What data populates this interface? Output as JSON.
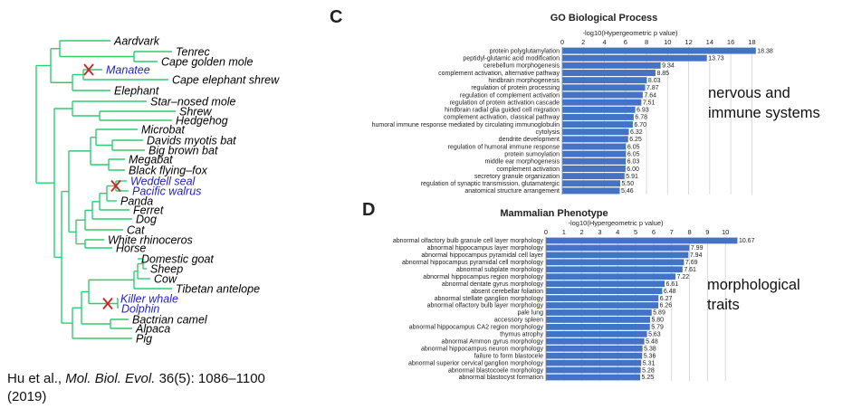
{
  "tree": {
    "line_color": "#2ecc71",
    "highlight_color": "#1f1fcc",
    "marker_color": "#cc2222",
    "taxa": [
      {
        "label": "Aardvark",
        "highlight": false,
        "lost": false
      },
      {
        "label": "Tenrec",
        "highlight": false,
        "lost": false
      },
      {
        "label": "Cape golden mole",
        "highlight": false,
        "lost": false
      },
      {
        "label": "Manatee",
        "highlight": true,
        "lost": true
      },
      {
        "label": "Cape elephant shrew",
        "highlight": false,
        "lost": false
      },
      {
        "label": "Elephant",
        "highlight": false,
        "lost": false
      },
      {
        "label": "Star–nosed mole",
        "highlight": false,
        "lost": false
      },
      {
        "label": "Shrew",
        "highlight": false,
        "lost": false
      },
      {
        "label": "Hedgehog",
        "highlight": false,
        "lost": false
      },
      {
        "label": "Microbat",
        "highlight": false,
        "lost": false
      },
      {
        "label": "Davids myotis bat",
        "highlight": false,
        "lost": false
      },
      {
        "label": "Big brown bat",
        "highlight": false,
        "lost": false
      },
      {
        "label": "Megabat",
        "highlight": false,
        "lost": false
      },
      {
        "label": "Black flying–fox",
        "highlight": false,
        "lost": false
      },
      {
        "label": "Weddell seal",
        "highlight": true,
        "lost": false
      },
      {
        "label": "Pacific walrus",
        "highlight": true,
        "lost": false
      },
      {
        "label": "Panda",
        "highlight": false,
        "lost": false
      },
      {
        "label": "Ferret",
        "highlight": false,
        "lost": false
      },
      {
        "label": "Dog",
        "highlight": false,
        "lost": false
      },
      {
        "label": "Cat",
        "highlight": false,
        "lost": false
      },
      {
        "label": "White rhinoceros",
        "highlight": false,
        "lost": false
      },
      {
        "label": "Horse",
        "highlight": false,
        "lost": false
      },
      {
        "label": "Domestic goat",
        "highlight": false,
        "lost": false
      },
      {
        "label": "Sheep",
        "highlight": false,
        "lost": false
      },
      {
        "label": "Cow",
        "highlight": false,
        "lost": false
      },
      {
        "label": "Tibetan antelope",
        "highlight": false,
        "lost": false
      },
      {
        "label": "Killer whale",
        "highlight": true,
        "lost": false
      },
      {
        "label": "Dolphin",
        "highlight": true,
        "lost": false
      },
      {
        "label": "Bactrian camel",
        "highlight": false,
        "lost": false
      },
      {
        "label": "Alpaca",
        "highlight": false,
        "lost": false
      },
      {
        "label": "Pig",
        "highlight": false,
        "lost": false
      }
    ]
  },
  "citation": {
    "prefix": "Hu et al., ",
    "journal": "Mol. Biol. Evol.",
    "details": " 36(5): 1086–1100",
    "year": "(2019)"
  },
  "panels": {
    "c_letter": "C",
    "d_letter": "D",
    "c_note_line1": "nervous and",
    "c_note_line2": "immune systems",
    "d_note_line1": "morphological",
    "d_note_line2": "traits"
  },
  "chart_data": [
    {
      "type": "bar",
      "orientation": "horizontal",
      "title": "GO Biological Process",
      "xlabel": "-log10(Hypergeometric p value)",
      "xlim": [
        0,
        19
      ],
      "xticks": [
        0,
        2,
        4,
        6,
        8,
        10,
        12,
        14,
        16,
        18
      ],
      "bar_color": "#4472c4",
      "grid": true,
      "categories": [
        "protein polyglutamylation",
        "peptidyl-glutamic acid modification",
        "cerebellum morphogenesis",
        "complement activation, alternative pathway",
        "hindbrain morphogenesis",
        "regulation of protein processing",
        "regulation of complement activation",
        "regulation of protein activation cascade",
        "hindbrain radial glia guided cell migration",
        "complement activation, classical pathway",
        "humoral immune response mediated by circulating immunoglobulin",
        "cytolysis",
        "dendrite development",
        "regulation of humoral immune response",
        "protein sumoylation",
        "middle ear morphogenesis",
        "complement activation",
        "secretory granule organization",
        "regulation of synaptic transmission, glutamatergic",
        "anatomical structure arrangement"
      ],
      "values": [
        18.38,
        13.73,
        9.34,
        8.85,
        8.03,
        7.87,
        7.64,
        7.51,
        6.93,
        6.78,
        6.7,
        6.32,
        6.25,
        6.05,
        6.05,
        6.03,
        6.0,
        5.91,
        5.5,
        5.46
      ],
      "value_labels": [
        "18.38",
        "13.73",
        "9.34",
        "8.85",
        "8.03",
        "7.87",
        "7.64",
        "7.51",
        "6.93",
        "6.78",
        "6.70",
        "6.32",
        "6.25",
        "6.05",
        "6.05",
        "6.03",
        "6.00",
        "5.91",
        "5.50",
        "5.46"
      ]
    },
    {
      "type": "bar",
      "orientation": "horizontal",
      "title": "Mammalian Phenotype",
      "xlabel": "-log10(Hypergeometric p value)",
      "xlim": [
        0,
        11
      ],
      "xticks": [
        0,
        1,
        2,
        3,
        4,
        5,
        6,
        7,
        8,
        9,
        10
      ],
      "bar_color": "#4472c4",
      "grid": true,
      "categories": [
        "abnormal olfactory bulb granule cell layer morphology",
        "abnormal hippocampus layer morphology",
        "abnormal hippocampus pyramidal cell layer",
        "abnormal hippocampus pyramidal cell morphology",
        "abnormal subplate morphology",
        "abnormal hippocampus region morphology",
        "abnormal dentate gyrus morphology",
        "absent cerebellar foliation",
        "abnormal stellate ganglion morphology",
        "abnormal olfactory bulb layer morphology",
        "pale lung",
        "accessory spleen",
        "abnormal hippocampus CA2 region morphology",
        "thymus atrophy",
        "abnormal Ammon gyrus morphology",
        "abnormal hippocampus neuron morphology",
        "failure to form blastocele",
        "abnormal superior cervical ganglion morphology",
        "abnormal blastocoele morphology",
        "abnormal blastocyst formation"
      ],
      "values": [
        10.67,
        7.99,
        7.94,
        7.69,
        7.61,
        7.22,
        6.61,
        6.48,
        6.27,
        6.26,
        5.89,
        5.8,
        5.79,
        5.63,
        5.48,
        5.38,
        5.36,
        5.31,
        5.28,
        5.25
      ],
      "value_labels": [
        "10.67",
        "7.99",
        "7.94",
        "7.69",
        "7.61",
        "7.22",
        "6.61",
        "6.48",
        "6.27",
        "6.26",
        "5.89",
        "5.80",
        "5.79",
        "5.63",
        "5.48",
        "5.38",
        "5.36",
        "5.31",
        "5.28",
        "5.25"
      ]
    }
  ]
}
